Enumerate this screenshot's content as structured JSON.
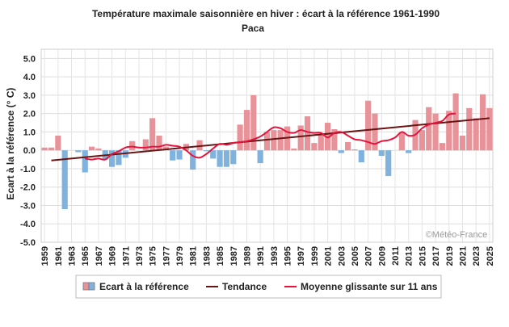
{
  "chart_data": {
    "type": "bar",
    "title": "Température maximale saisonnière en hiver : écart à la référence 1961-1990",
    "subtitle": "Paca",
    "ylabel": "Ecart à la référence (° C)",
    "xlabel": "",
    "ylim": [
      -5,
      5.5
    ],
    "yticks": [
      "5.0",
      "4.0",
      "3.0",
      "2.0",
      "1.0",
      "0.0",
      "-1.0",
      "-2.0",
      "-3.0",
      "-4.0",
      "-5.0"
    ],
    "xticks": [
      1959,
      1961,
      1963,
      1965,
      1967,
      1969,
      1971,
      1973,
      1975,
      1977,
      1979,
      1981,
      1983,
      1985,
      1987,
      1989,
      1991,
      1993,
      1995,
      1997,
      1999,
      2001,
      2003,
      2005,
      2007,
      2009,
      2011,
      2013,
      2015,
      2017,
      2019,
      2021,
      2023,
      2025
    ],
    "grid": true,
    "legend_position": "bottom",
    "copyright": "©Météo-France",
    "years": [
      1959,
      1960,
      1961,
      1962,
      1963,
      1964,
      1965,
      1966,
      1967,
      1968,
      1969,
      1970,
      1971,
      1972,
      1973,
      1974,
      1975,
      1976,
      1977,
      1978,
      1979,
      1980,
      1981,
      1982,
      1983,
      1984,
      1985,
      1986,
      1987,
      1988,
      1989,
      1990,
      1991,
      1992,
      1993,
      1994,
      1995,
      1996,
      1997,
      1998,
      1999,
      2000,
      2001,
      2002,
      2003,
      2004,
      2005,
      2006,
      2007,
      2008,
      2009,
      2010,
      2011,
      2012,
      2013,
      2014,
      2015,
      2016,
      2017,
      2018,
      2019,
      2020,
      2021,
      2022,
      2023,
      2024,
      2025
    ],
    "values": [
      0.15,
      0.15,
      0.8,
      -3.2,
      0.0,
      -0.1,
      -1.2,
      0.2,
      0.1,
      -0.5,
      -0.9,
      -0.8,
      -0.4,
      0.5,
      0.0,
      0.6,
      1.75,
      0.8,
      0.2,
      -0.55,
      -0.5,
      0.35,
      -1.05,
      0.55,
      -0.05,
      -0.45,
      -0.9,
      -0.9,
      -0.75,
      1.4,
      2.2,
      3.0,
      -0.7,
      1.0,
      1.1,
      1.1,
      1.3,
      0.1,
      1.35,
      1.85,
      0.4,
      0.85,
      1.5,
      1.15,
      -0.15,
      0.45,
      0.05,
      -0.65,
      2.7,
      2.0,
      -0.3,
      -1.4,
      0.0,
      1.0,
      -0.15,
      1.65,
      1.1,
      2.35,
      2.0,
      0.4,
      2.15,
      3.1,
      0.8,
      2.3,
      1.75,
      3.05,
      2.3
    ],
    "series": [
      {
        "name": "Ecart à la référence",
        "kind": "bar",
        "positive_color": "#e8929a",
        "negative_color": "#7fb2dd"
      },
      {
        "name": "Tendance",
        "kind": "line",
        "color": "#6b1414",
        "x": [
          1960,
          2025
        ],
        "values": [
          -0.55,
          1.75
        ]
      },
      {
        "name": "Moyenne glissante sur 11 ans",
        "kind": "line",
        "color": "#e6143c",
        "x": [
          1965,
          1966,
          1967,
          1968,
          1969,
          1970,
          1971,
          1972,
          1973,
          1974,
          1975,
          1976,
          1977,
          1978,
          1979,
          1980,
          1981,
          1982,
          1983,
          1984,
          1985,
          1986,
          1987,
          1988,
          1989,
          1990,
          1991,
          1992,
          1993,
          1994,
          1995,
          1996,
          1997,
          1998,
          1999,
          2000,
          2001,
          2002,
          2003,
          2004,
          2005,
          2006,
          2007,
          2008,
          2009,
          2010,
          2011,
          2012,
          2013,
          2014,
          2015,
          2016,
          2017,
          2018,
          2019,
          2020
        ],
        "values": [
          -0.45,
          -0.5,
          -0.45,
          -0.5,
          -0.2,
          -0.05,
          0.15,
          0.2,
          0.15,
          0.15,
          0.2,
          0.2,
          0.3,
          0.25,
          0.2,
          0.0,
          -0.3,
          -0.4,
          -0.2,
          0.1,
          0.35,
          0.3,
          0.4,
          0.45,
          0.5,
          0.6,
          0.75,
          1.0,
          1.25,
          1.2,
          1.0,
          0.95,
          1.1,
          1.0,
          0.95,
          0.95,
          0.7,
          0.95,
          1.0,
          0.8,
          0.6,
          0.55,
          0.45,
          0.35,
          0.5,
          0.55,
          0.7,
          1.0,
          0.8,
          0.85,
          1.2,
          1.4,
          1.5,
          1.6,
          1.95,
          2.0
        ]
      }
    ]
  }
}
